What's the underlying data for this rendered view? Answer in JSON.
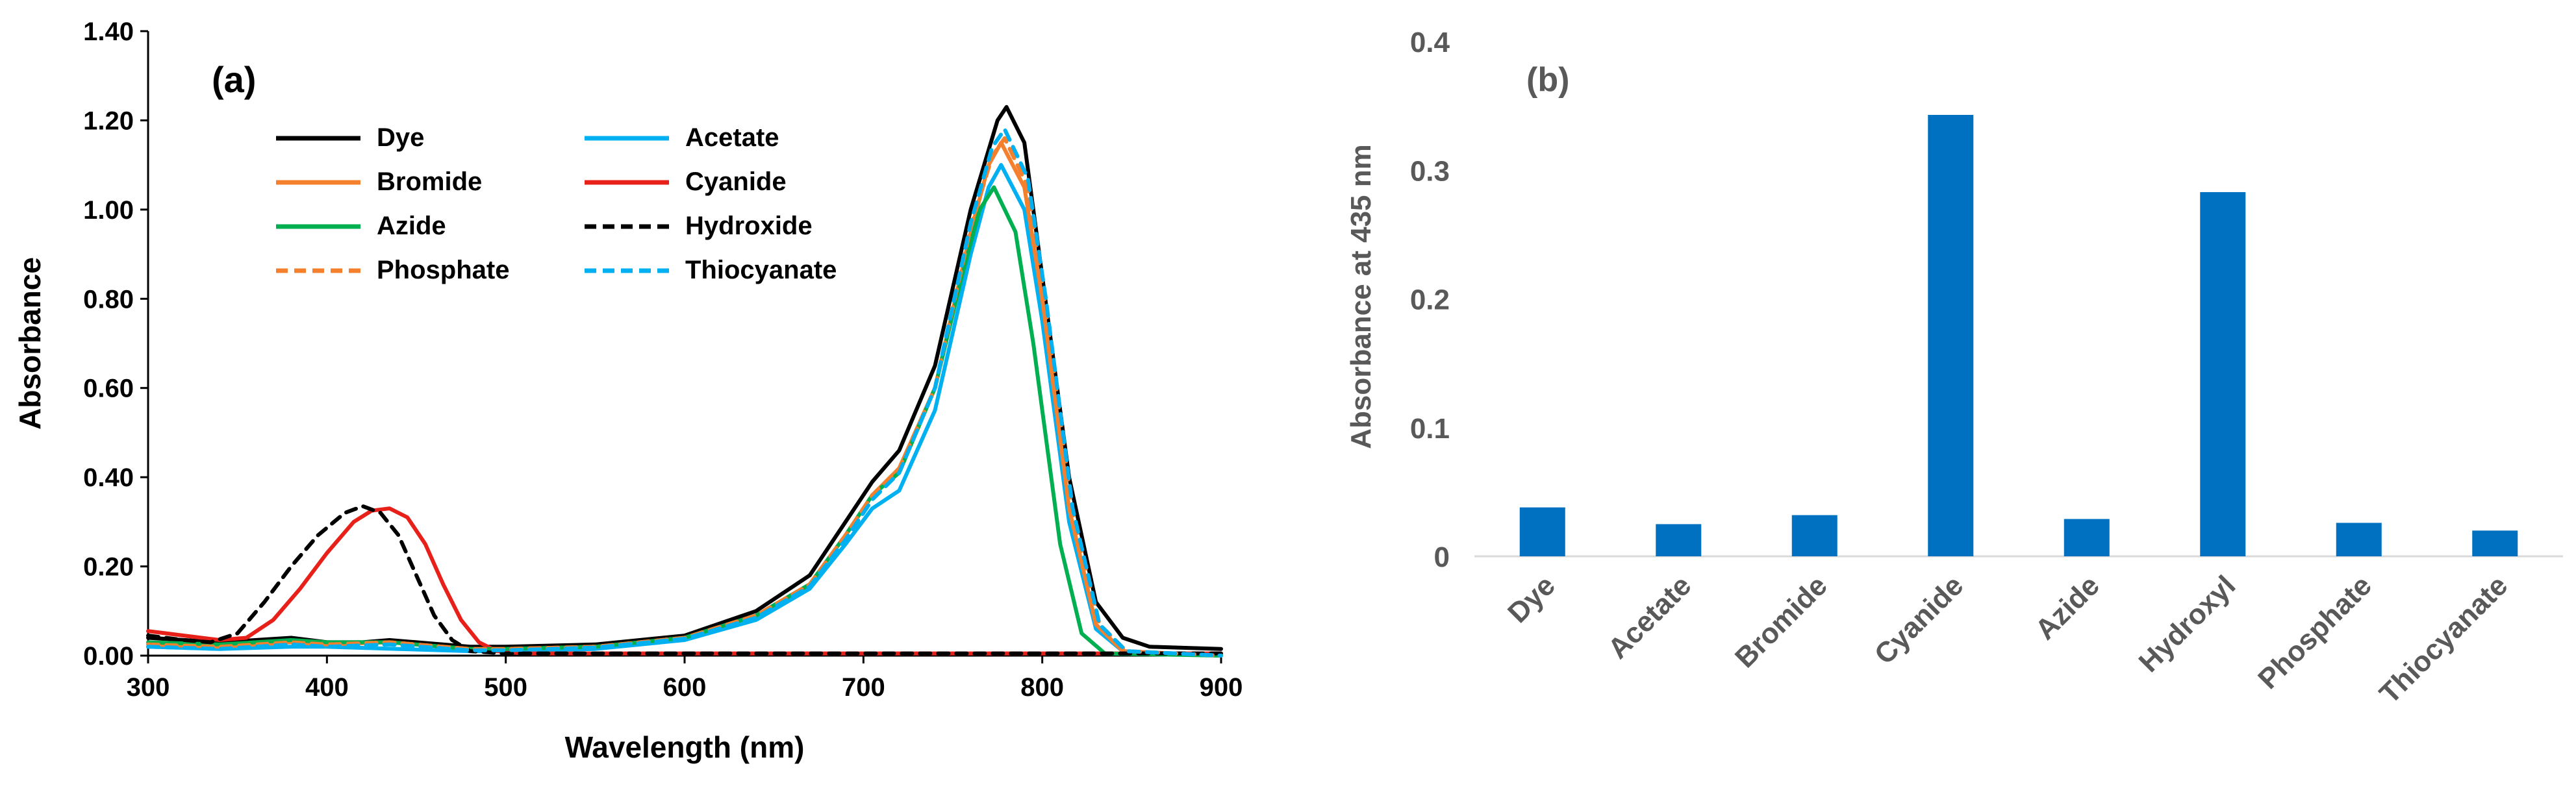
{
  "chart_data": [
    {
      "type": "line",
      "panel_label": "(a)",
      "xlabel": "Wavelength (nm)",
      "ylabel": "Absorbance",
      "xlim": [
        300,
        900
      ],
      "ylim": [
        0,
        1.4
      ],
      "x_ticks": [
        "300",
        "400",
        "500",
        "600",
        "700",
        "800",
        "900"
      ],
      "y_ticks": [
        "0.00",
        "0.20",
        "0.40",
        "0.60",
        "0.80",
        "1.00",
        "1.20",
        "1.40"
      ],
      "grid": false,
      "legend_position": "top-left",
      "series": [
        {
          "name": "Dye",
          "color": "#000000",
          "style": "solid",
          "peak_x": 780,
          "peak_y": 1.23,
          "points": [
            [
              300,
              0.04
            ],
            [
              340,
              0.03
            ],
            [
              360,
              0.035
            ],
            [
              380,
              0.04
            ],
            [
              400,
              0.03
            ],
            [
              420,
              0.03
            ],
            [
              435,
              0.035
            ],
            [
              450,
              0.03
            ],
            [
              480,
              0.02
            ],
            [
              500,
              0.02
            ],
            [
              550,
              0.025
            ],
            [
              600,
              0.045
            ],
            [
              640,
              0.1
            ],
            [
              670,
              0.18
            ],
            [
              690,
              0.3
            ],
            [
              705,
              0.39
            ],
            [
              720,
              0.46
            ],
            [
              740,
              0.65
            ],
            [
              760,
              1.0
            ],
            [
              775,
              1.2
            ],
            [
              780,
              1.23
            ],
            [
              790,
              1.15
            ],
            [
              800,
              0.85
            ],
            [
              815,
              0.4
            ],
            [
              830,
              0.12
            ],
            [
              845,
              0.04
            ],
            [
              860,
              0.02
            ],
            [
              900,
              0.015
            ]
          ]
        },
        {
          "name": "Acetate",
          "color": "#00B0F0",
          "style": "solid",
          "peak_x": 777,
          "peak_y": 1.1,
          "points": [
            [
              300,
              0.02
            ],
            [
              340,
              0.015
            ],
            [
              380,
              0.02
            ],
            [
              400,
              0.02
            ],
            [
              440,
              0.015
            ],
            [
              480,
              0.01
            ],
            [
              500,
              0.01
            ],
            [
              550,
              0.015
            ],
            [
              600,
              0.035
            ],
            [
              640,
              0.08
            ],
            [
              670,
              0.15
            ],
            [
              690,
              0.25
            ],
            [
              705,
              0.33
            ],
            [
              720,
              0.37
            ],
            [
              740,
              0.55
            ],
            [
              760,
              0.9
            ],
            [
              770,
              1.05
            ],
            [
              777,
              1.1
            ],
            [
              790,
              1.0
            ],
            [
              800,
              0.75
            ],
            [
              815,
              0.3
            ],
            [
              830,
              0.06
            ],
            [
              845,
              0.01
            ],
            [
              900,
              0
            ]
          ]
        },
        {
          "name": "Bromide",
          "color": "#F4802E",
          "style": "solid",
          "peak_x": 777,
          "peak_y": 1.15,
          "points": [
            [
              300,
              0.025
            ],
            [
              340,
              0.02
            ],
            [
              380,
              0.03
            ],
            [
              400,
              0.025
            ],
            [
              435,
              0.03
            ],
            [
              480,
              0.015
            ],
            [
              500,
              0.015
            ],
            [
              550,
              0.02
            ],
            [
              600,
              0.04
            ],
            [
              640,
              0.09
            ],
            [
              670,
              0.16
            ],
            [
              690,
              0.27
            ],
            [
              705,
              0.36
            ],
            [
              720,
              0.42
            ],
            [
              740,
              0.6
            ],
            [
              760,
              0.95
            ],
            [
              770,
              1.1
            ],
            [
              777,
              1.15
            ],
            [
              790,
              1.05
            ],
            [
              800,
              0.8
            ],
            [
              815,
              0.33
            ],
            [
              830,
              0.07
            ],
            [
              845,
              0.01
            ],
            [
              900,
              0
            ]
          ]
        },
        {
          "name": "Cyanide",
          "color": "#E8201A",
          "style": "solid",
          "peak_x": 435,
          "peak_y": 0.33,
          "points": [
            [
              300,
              0.055
            ],
            [
              320,
              0.045
            ],
            [
              340,
              0.035
            ],
            [
              355,
              0.04
            ],
            [
              370,
              0.08
            ],
            [
              385,
              0.15
            ],
            [
              400,
              0.23
            ],
            [
              415,
              0.3
            ],
            [
              425,
              0.325
            ],
            [
              435,
              0.33
            ],
            [
              445,
              0.31
            ],
            [
              455,
              0.25
            ],
            [
              465,
              0.16
            ],
            [
              475,
              0.08
            ],
            [
              485,
              0.03
            ],
            [
              495,
              0.01
            ],
            [
              510,
              0.005
            ],
            [
              550,
              0.005
            ],
            [
              600,
              0.005
            ],
            [
              700,
              0.005
            ],
            [
              800,
              0.005
            ],
            [
              900,
              0.005
            ]
          ]
        },
        {
          "name": "Azide",
          "color": "#00B050",
          "style": "solid",
          "peak_x": 773,
          "peak_y": 1.05,
          "points": [
            [
              300,
              0.03
            ],
            [
              340,
              0.025
            ],
            [
              380,
              0.035
            ],
            [
              400,
              0.03
            ],
            [
              435,
              0.03
            ],
            [
              480,
              0.015
            ],
            [
              500,
              0.015
            ],
            [
              550,
              0.02
            ],
            [
              600,
              0.04
            ],
            [
              640,
              0.09
            ],
            [
              670,
              0.16
            ],
            [
              690,
              0.27
            ],
            [
              705,
              0.36
            ],
            [
              720,
              0.41
            ],
            [
              740,
              0.6
            ],
            [
              755,
              0.85
            ],
            [
              765,
              1.0
            ],
            [
              773,
              1.05
            ],
            [
              785,
              0.95
            ],
            [
              795,
              0.7
            ],
            [
              810,
              0.25
            ],
            [
              822,
              0.05
            ],
            [
              835,
              0.005
            ],
            [
              900,
              0
            ]
          ]
        },
        {
          "name": "Hydroxide",
          "color": "#000000",
          "style": "dashed",
          "peak_x": 420,
          "peak_y": 0.335,
          "points": [
            [
              300,
              0.045
            ],
            [
              320,
              0.035
            ],
            [
              335,
              0.03
            ],
            [
              350,
              0.05
            ],
            [
              365,
              0.12
            ],
            [
              380,
              0.2
            ],
            [
              395,
              0.27
            ],
            [
              410,
              0.32
            ],
            [
              420,
              0.335
            ],
            [
              430,
              0.32
            ],
            [
              440,
              0.27
            ],
            [
              450,
              0.18
            ],
            [
              460,
              0.09
            ],
            [
              470,
              0.035
            ],
            [
              480,
              0.01
            ],
            [
              500,
              0.005
            ],
            [
              600,
              0.005
            ],
            [
              700,
              0.005
            ],
            [
              800,
              0.005
            ],
            [
              900,
              0.005
            ]
          ]
        },
        {
          "name": "Phosphate",
          "color": "#F4802E",
          "style": "dashed",
          "peak_x": 779,
          "peak_y": 1.16,
          "points": [
            [
              300,
              0.025
            ],
            [
              340,
              0.02
            ],
            [
              380,
              0.03
            ],
            [
              400,
              0.025
            ],
            [
              435,
              0.03
            ],
            [
              480,
              0.015
            ],
            [
              500,
              0.015
            ],
            [
              550,
              0.02
            ],
            [
              600,
              0.04
            ],
            [
              640,
              0.09
            ],
            [
              670,
              0.16
            ],
            [
              690,
              0.27
            ],
            [
              705,
              0.36
            ],
            [
              720,
              0.42
            ],
            [
              740,
              0.6
            ],
            [
              760,
              0.96
            ],
            [
              772,
              1.12
            ],
            [
              779,
              1.16
            ],
            [
              792,
              1.05
            ],
            [
              802,
              0.78
            ],
            [
              817,
              0.32
            ],
            [
              832,
              0.07
            ],
            [
              847,
              0.01
            ],
            [
              900,
              0
            ]
          ]
        },
        {
          "name": "Thiocyanate",
          "color": "#00B0F0",
          "style": "dashed",
          "peak_x": 779,
          "peak_y": 1.18,
          "points": [
            [
              300,
              0.02
            ],
            [
              340,
              0.015
            ],
            [
              380,
              0.025
            ],
            [
              400,
              0.02
            ],
            [
              435,
              0.025
            ],
            [
              480,
              0.012
            ],
            [
              500,
              0.012
            ],
            [
              550,
              0.018
            ],
            [
              600,
              0.038
            ],
            [
              640,
              0.085
            ],
            [
              670,
              0.155
            ],
            [
              690,
              0.26
            ],
            [
              705,
              0.35
            ],
            [
              720,
              0.41
            ],
            [
              740,
              0.6
            ],
            [
              760,
              0.97
            ],
            [
              772,
              1.14
            ],
            [
              779,
              1.18
            ],
            [
              792,
              1.07
            ],
            [
              802,
              0.8
            ],
            [
              817,
              0.33
            ],
            [
              832,
              0.07
            ],
            [
              847,
              0.01
            ],
            [
              900,
              0
            ]
          ]
        }
      ]
    },
    {
      "type": "bar",
      "panel_label": "(b)",
      "title": "",
      "xlabel": "",
      "ylabel": "Absorbance at 435 nm",
      "ylim": [
        0,
        0.4
      ],
      "y_ticks": [
        "0",
        "0.1",
        "0.2",
        "0.3",
        "0.4"
      ],
      "grid": false,
      "bar_color": "#0070C0",
      "categories": [
        "Dye",
        "Acetate",
        "Bromide",
        "Cyanide",
        "Azide",
        "Hydroxyl",
        "Phosphate",
        "Thiocyanate"
      ],
      "values": [
        0.038,
        0.025,
        0.032,
        0.343,
        0.029,
        0.283,
        0.026,
        0.02
      ]
    }
  ]
}
